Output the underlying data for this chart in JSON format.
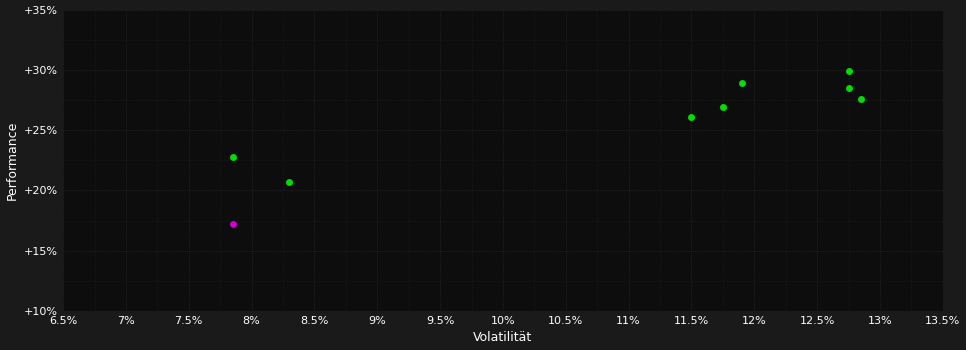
{
  "background_color": "#1a1a1a",
  "plot_bg_color": "#0d0d0d",
  "grid_color": "#2a2a2a",
  "text_color": "#ffffff",
  "xlabel": "Volatilität",
  "ylabel": "Performance",
  "xlim": [
    0.065,
    0.135
  ],
  "ylim": [
    0.1,
    0.35
  ],
  "xticks": [
    0.065,
    0.07,
    0.075,
    0.08,
    0.085,
    0.09,
    0.095,
    0.1,
    0.105,
    0.11,
    0.115,
    0.12,
    0.125,
    0.13,
    0.135
  ],
  "yticks": [
    0.1,
    0.15,
    0.2,
    0.25,
    0.3,
    0.35
  ],
  "minor_yticks": [
    0.1,
    0.125,
    0.15,
    0.175,
    0.2,
    0.225,
    0.25,
    0.275,
    0.3,
    0.325,
    0.35
  ],
  "green_points": [
    [
      0.0785,
      0.228
    ],
    [
      0.083,
      0.207
    ],
    [
      0.115,
      0.261
    ],
    [
      0.1175,
      0.269
    ],
    [
      0.119,
      0.289
    ],
    [
      0.1275,
      0.299
    ],
    [
      0.1275,
      0.285
    ],
    [
      0.1285,
      0.276
    ]
  ],
  "magenta_points": [
    [
      0.0785,
      0.172
    ]
  ],
  "green_color": "#00dd00",
  "magenta_color": "#cc00cc",
  "marker_size": 5,
  "font_size_ticks": 8,
  "font_size_labels": 9
}
